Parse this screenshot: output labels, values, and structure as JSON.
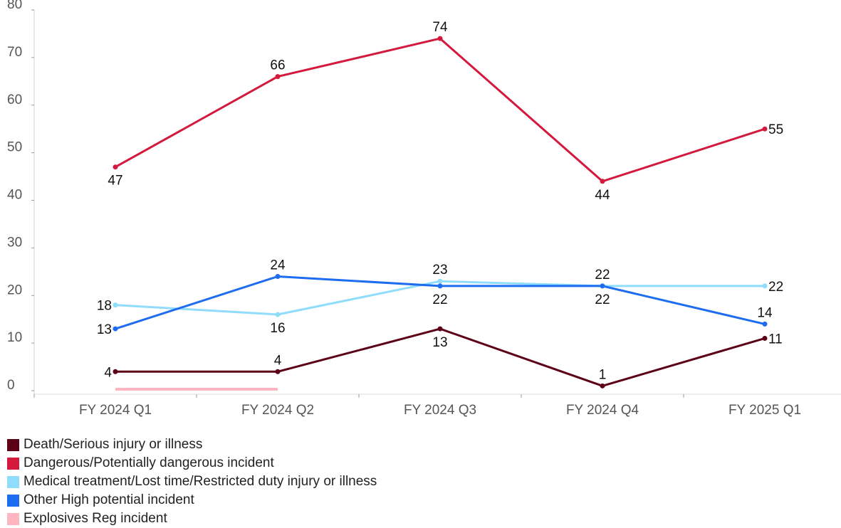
{
  "chart_data": {
    "type": "line",
    "categories": [
      "FY 2024 Q1",
      "FY 2024 Q2",
      "FY 2024 Q3",
      "FY 2024 Q4",
      "FY 2025 Q1"
    ],
    "ylim": [
      0,
      80
    ],
    "yticks": [
      "0",
      "10",
      "20",
      "30",
      "40",
      "50",
      "60",
      "70",
      "80"
    ],
    "grid": false,
    "legend_position": "bottom-left",
    "series": [
      {
        "name": "Death/Serious injury or illness",
        "color": "#5c0018",
        "values": [
          4,
          4,
          13,
          1,
          11
        ],
        "labels": [
          "4",
          "4",
          "13",
          "1",
          "11"
        ]
      },
      {
        "name": "Dangerous/Potentially dangerous incident",
        "color": "#d31a3d",
        "values": [
          47,
          66,
          74,
          44,
          55
        ],
        "labels": [
          "47",
          "66",
          "74",
          "44",
          "55"
        ]
      },
      {
        "name": "Medical treatment/Lost time/Restricted duty injury or illness",
        "color": "#8fdcfb",
        "values": [
          18,
          16,
          23,
          22,
          22
        ],
        "labels": [
          "18",
          "16",
          "23",
          "22",
          "22"
        ]
      },
      {
        "name": "Other High potential incident",
        "color": "#1e6cf0",
        "values": [
          13,
          24,
          22,
          22,
          14
        ],
        "labels": [
          "13",
          "24",
          "22",
          "22",
          "14"
        ]
      },
      {
        "name": "Explosives Reg incident",
        "color": "#ffb6c1",
        "values": [
          1,
          1,
          null,
          null,
          null
        ],
        "labels": [
          "",
          "",
          "",
          "",
          ""
        ]
      }
    ]
  }
}
